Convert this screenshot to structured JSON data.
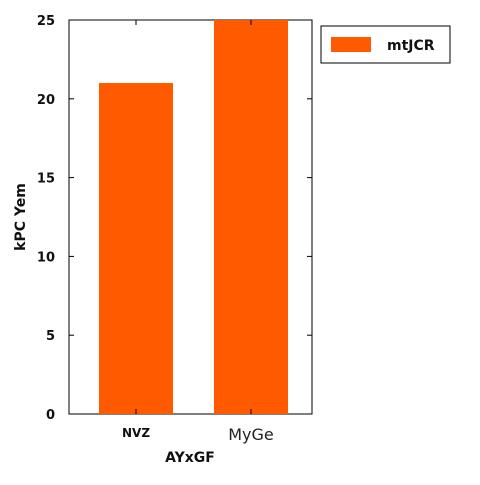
{
  "chart_data": {
    "type": "bar",
    "categories": [
      "NVZ",
      "MyGe"
    ],
    "series": [
      {
        "name": "mtJCR",
        "values": [
          21,
          25
        ],
        "color": "#ff5a00"
      }
    ],
    "xlabel": "AYxGF",
    "ylabel": "kPC Yem",
    "ylim": [
      0,
      25
    ],
    "yticks": [
      0,
      5,
      10,
      15,
      20,
      25
    ],
    "grid": false,
    "legend_position": "top-right"
  }
}
